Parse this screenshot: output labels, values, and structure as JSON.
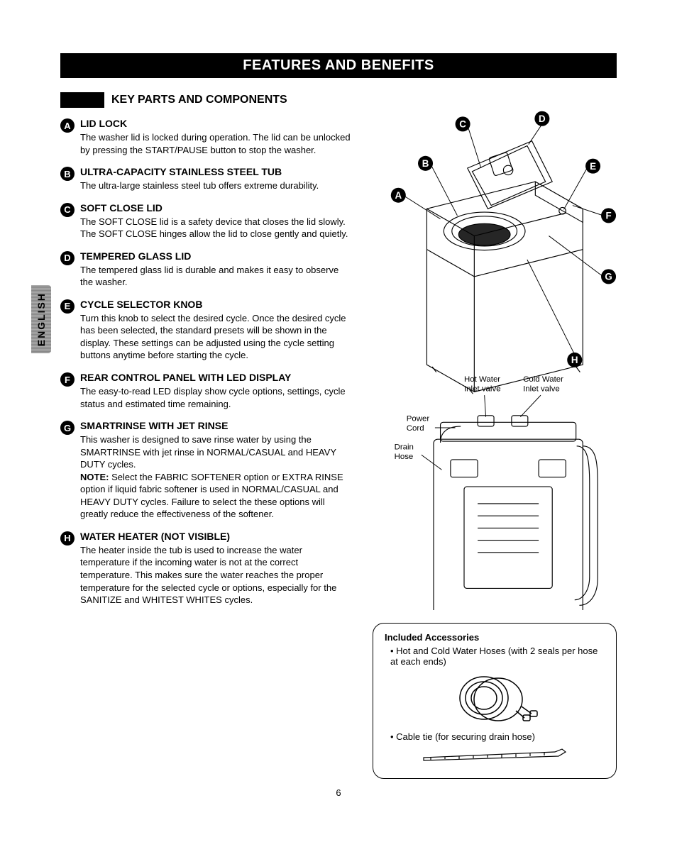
{
  "banner": "FEATURES AND BENEFITS",
  "sectionTitle": "KEY PARTS AND COMPONENTS",
  "languageTab": "ENGLISH",
  "pageNumber": "6",
  "items": [
    {
      "letter": "A",
      "title": "LID LOCK",
      "desc": "The washer lid is locked during operation. The lid can be unlocked by pressing the START/PAUSE button to stop the washer."
    },
    {
      "letter": "B",
      "title": "ULTRA-CAPACITY STAINLESS STEEL TUB",
      "desc": "The ultra-large stainless steel tub offers extreme durability."
    },
    {
      "letter": "C",
      "title": "SOFT CLOSE LID",
      "desc": "The SOFT CLOSE lid is a safety device that closes the lid slowly. The SOFT CLOSE hinges allow the lid to close gently and quietly."
    },
    {
      "letter": "D",
      "title": "TEMPERED GLASS LID",
      "desc": "The tempered glass lid is durable and makes it easy to observe the washer."
    },
    {
      "letter": "E",
      "title": "CYCLE SELECTOR KNOB",
      "desc": "Turn this knob to select the desired cycle. Once the desired cycle has been selected, the standard presets will be shown in the display. These settings can be adjusted using the cycle setting buttons anytime before starting the cycle."
    },
    {
      "letter": "F",
      "title": "REAR CONTROL PANEL WITH LED DISPLAY",
      "desc": "The easy-to-read LED display show cycle options, settings, cycle status and estimated time remaining."
    },
    {
      "letter": "G",
      "title": "SMARTRINSE WITH JET RINSE",
      "desc": "This washer is designed to save rinse water by using the SMARTRINSE with jet rinse in NORMAL/CASUAL and HEAVY DUTY cycles.",
      "noteLabel": "NOTE:",
      "note": "Select the FABRIC SOFTENER option or EXTRA RINSE option if liquid fabric softener is used in NORMAL/CASUAL and HEAVY DUTY cycles.  Failure to select the these options will greatly reduce the effectiveness of the softener."
    },
    {
      "letter": "H",
      "title": "WATER HEATER (NOT VISIBLE)",
      "desc": "The heater inside the tub is used to increase the water temperature if the incoming water is not at the correct temperature. This makes sure the water reaches the proper temperature for the selected cycle or options, especially for the SANITIZE and WHITEST WHITES cycles."
    }
  ],
  "diagram": {
    "callouts": [
      "A",
      "B",
      "C",
      "D",
      "E",
      "F",
      "G",
      "H"
    ],
    "rearLabels": {
      "hotWater": "Hot Water\nInlet valve",
      "coldWater": "Cold Water\nInlet valve",
      "powerCord": "Power\nCord",
      "drainHose": "Drain\nHose"
    }
  },
  "accessories": {
    "title": "Included Accessories",
    "items": [
      "Hot and Cold Water Hoses (with 2 seals per hose at each ends)",
      "Cable tie (for securing drain hose)"
    ]
  }
}
